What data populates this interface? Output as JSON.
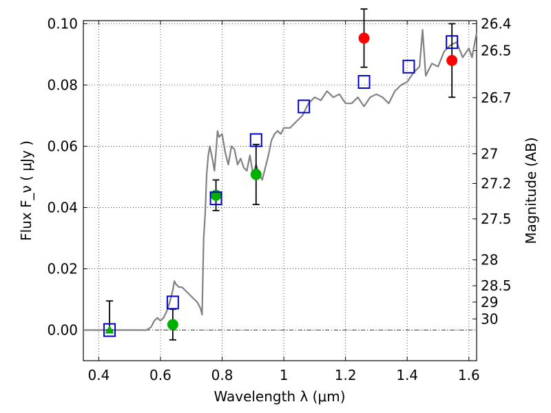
{
  "chart_data": {
    "type": "scatter",
    "xlabel": "Wavelength λ (μm)",
    "ylabel": "Flux F_ν ( μJy )",
    "y2label": "Magnitude (AB)",
    "xlim": [
      0.35,
      1.625
    ],
    "ylim": [
      -0.01,
      0.101
    ],
    "grid": true,
    "x_ticks": [
      {
        "value": 0.4,
        "label": "0.4"
      },
      {
        "value": 0.6,
        "label": "0.6"
      },
      {
        "value": 0.8,
        "label": "0.8"
      },
      {
        "value": 1.0,
        "label": "1"
      },
      {
        "value": 1.2,
        "label": "1.2"
      },
      {
        "value": 1.4,
        "label": "1.4"
      },
      {
        "value": 1.6,
        "label": "1.6"
      }
    ],
    "y_ticks": [
      {
        "value": 0.0,
        "label": "0.00"
      },
      {
        "value": 0.02,
        "label": "0.02"
      },
      {
        "value": 0.04,
        "label": "0.04"
      },
      {
        "value": 0.06,
        "label": "0.06"
      },
      {
        "value": 0.08,
        "label": "0.08"
      },
      {
        "value": 0.1,
        "label": "0.10"
      }
    ],
    "y2_ticks": [
      {
        "value": 26.4,
        "label": "26.4"
      },
      {
        "value": 26.5,
        "label": "26.5"
      },
      {
        "value": 26.7,
        "label": "26.7"
      },
      {
        "value": 27.0,
        "label": "27"
      },
      {
        "value": 27.2,
        "label": "27.2"
      },
      {
        "value": 27.5,
        "label": "27.5"
      },
      {
        "value": 28.0,
        "label": "28"
      },
      {
        "value": 28.5,
        "label": "28.5"
      },
      {
        "value": 29.0,
        "label": "29"
      },
      {
        "value": 30.0,
        "label": "30"
      }
    ],
    "colors": {
      "template": "#808080",
      "model": "#0000cc",
      "green": "#00b000",
      "red": "#ff0000",
      "errorbar": "#000000"
    },
    "series": [
      {
        "kind": "template_line",
        "x": [
          0.35,
          0.4,
          0.45,
          0.5,
          0.555,
          0.57,
          0.58,
          0.59,
          0.6,
          0.61,
          0.62,
          0.63,
          0.64,
          0.645,
          0.65,
          0.66,
          0.67,
          0.68,
          0.69,
          0.7,
          0.71,
          0.72,
          0.73,
          0.735,
          0.74,
          0.745,
          0.75,
          0.755,
          0.76,
          0.77,
          0.775,
          0.78,
          0.785,
          0.79,
          0.8,
          0.81,
          0.82,
          0.83,
          0.84,
          0.85,
          0.86,
          0.87,
          0.88,
          0.89,
          0.9,
          0.91,
          0.92,
          0.93,
          0.94,
          0.95,
          0.96,
          0.97,
          0.98,
          0.99,
          1.0,
          1.02,
          1.04,
          1.06,
          1.08,
          1.1,
          1.12,
          1.14,
          1.16,
          1.18,
          1.2,
          1.22,
          1.24,
          1.26,
          1.28,
          1.3,
          1.32,
          1.34,
          1.36,
          1.38,
          1.4,
          1.42,
          1.44,
          1.45,
          1.46,
          1.48,
          1.5,
          1.52,
          1.54,
          1.56,
          1.58,
          1.6,
          1.61,
          1.625
        ],
        "y": [
          0.0,
          0.0,
          0.0,
          0.0,
          0.0,
          0.001,
          0.003,
          0.004,
          0.003,
          0.004,
          0.006,
          0.009,
          0.013,
          0.016,
          0.015,
          0.014,
          0.014,
          0.013,
          0.012,
          0.011,
          0.01,
          0.009,
          0.007,
          0.005,
          0.03,
          0.038,
          0.051,
          0.057,
          0.06,
          0.055,
          0.052,
          0.058,
          0.065,
          0.063,
          0.064,
          0.058,
          0.054,
          0.06,
          0.059,
          0.054,
          0.056,
          0.053,
          0.052,
          0.057,
          0.051,
          0.054,
          0.051,
          0.049,
          0.053,
          0.057,
          0.062,
          0.064,
          0.065,
          0.064,
          0.066,
          0.066,
          0.068,
          0.07,
          0.074,
          0.076,
          0.075,
          0.078,
          0.076,
          0.077,
          0.074,
          0.074,
          0.076,
          0.073,
          0.076,
          0.077,
          0.076,
          0.074,
          0.078,
          0.08,
          0.081,
          0.084,
          0.086,
          0.098,
          0.083,
          0.087,
          0.086,
          0.091,
          0.093,
          0.094,
          0.089,
          0.092,
          0.089,
          0.097
        ]
      },
      {
        "kind": "open_square",
        "color_key": "model",
        "x": [
          0.435,
          0.64,
          0.78,
          0.91,
          1.065,
          1.26,
          1.405,
          1.545
        ],
        "y": [
          0.0,
          0.009,
          0.043,
          0.062,
          0.073,
          0.081,
          0.086,
          0.094
        ]
      },
      {
        "kind": "filled_circle",
        "color_key": "green",
        "x": [
          0.64,
          0.78,
          0.91
        ],
        "y": [
          0.0018,
          0.044,
          0.0508
        ],
        "err": [
          0.005,
          0.005,
          0.0098
        ]
      },
      {
        "kind": "filled_triangle",
        "color_key": "green",
        "x": [
          0.435
        ],
        "y": [
          0.0
        ],
        "err_low": [
          0.0
        ],
        "err_high": [
          0.0095
        ]
      },
      {
        "kind": "filled_circle",
        "color_key": "red",
        "x": [
          1.26,
          1.545
        ],
        "y": [
          0.0953,
          0.088
        ],
        "err": [
          0.0095,
          0.012
        ]
      }
    ]
  }
}
